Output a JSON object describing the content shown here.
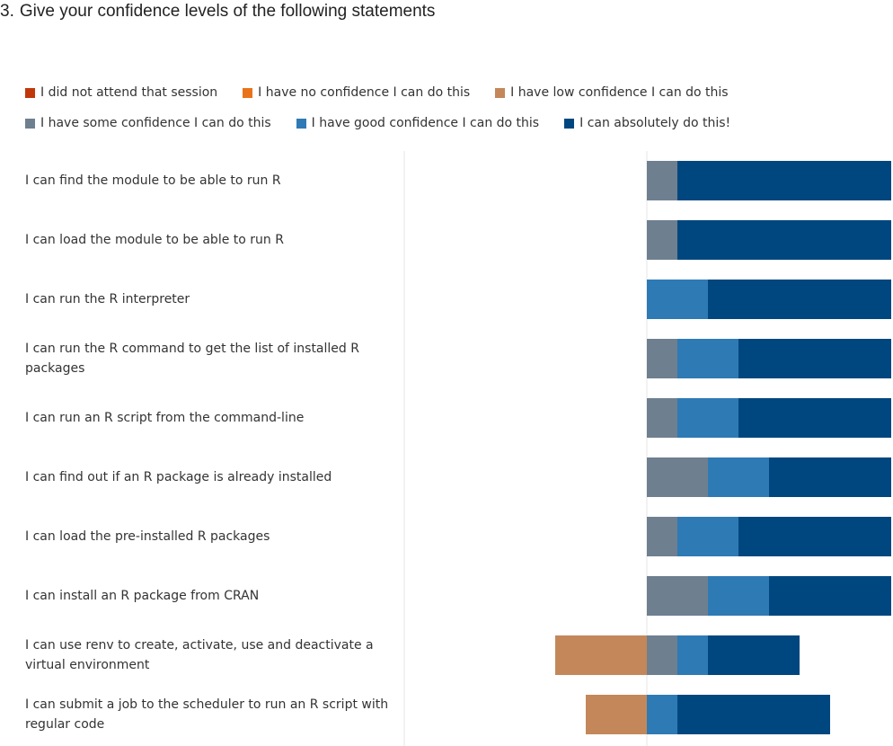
{
  "question": {
    "number": "3.",
    "text": "Give your confidence levels of the following statements"
  },
  "chart_data": {
    "type": "bar",
    "orientation": "horizontal",
    "stacked": true,
    "diverging": true,
    "legend_position": "top",
    "grid": true,
    "categories": [
      "I can find the module to be able to run R",
      "I can load the module to be able to run R",
      "I can run the R interpreter",
      "I can run the R command to get the list of installed R packages",
      "I can run an R script from the command-line",
      "I can find out if an R package is already installed",
      "I can load the pre-installed R packages",
      "I can install an R package from CRAN",
      "I can use renv to create, activate, use and deactivate a virtual environment",
      "I can submit a job to the scheduler to run an R script with regular code"
    ],
    "series": [
      {
        "name": "I did not attend that session",
        "color": "#C0370B",
        "values": [
          0,
          0,
          0,
          0,
          0,
          0,
          0,
          0,
          0,
          0
        ]
      },
      {
        "name": "I have no confidence I can do this",
        "color": "#E8731A",
        "values": [
          0,
          0,
          0,
          0,
          0,
          0,
          0,
          0,
          0,
          0
        ]
      },
      {
        "name": "I have low confidence I can do this",
        "color": "#C4875A",
        "values": [
          0,
          0,
          0,
          0,
          0,
          0,
          0,
          0,
          3,
          2
        ]
      },
      {
        "name": "I have some confidence I can do this",
        "color": "#6E7F8F",
        "values": [
          1,
          1,
          0,
          1,
          1,
          2,
          1,
          2,
          1,
          0
        ]
      },
      {
        "name": "I have good confidence I can do this",
        "color": "#2E7AB5",
        "values": [
          0,
          0,
          2,
          2,
          2,
          2,
          2,
          2,
          1,
          1
        ]
      },
      {
        "name": "I can absolutely do this!",
        "color": "#00477F",
        "values": [
          7,
          7,
          6,
          5,
          5,
          4,
          5,
          4,
          3,
          5
        ]
      }
    ]
  }
}
